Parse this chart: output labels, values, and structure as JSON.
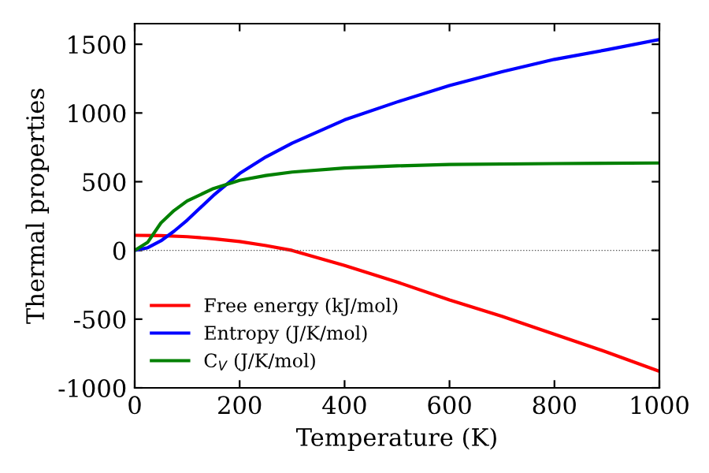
{
  "chart_data": {
    "type": "line",
    "xlabel": "Temperature (K)",
    "ylabel": "Thermal properties",
    "xlim": [
      0,
      1000
    ],
    "xticks": [
      0,
      200,
      400,
      600,
      800,
      1000
    ],
    "ylim": [
      -1000,
      1650
    ],
    "yticks": [
      -1000,
      -500,
      0,
      500,
      1000,
      1500
    ],
    "grid": false,
    "legend": "bottom left",
    "marker": "none",
    "line_style": "solid",
    "ref_lines": [
      {
        "axis": "y",
        "value": 0,
        "label": null,
        "color": "#555555",
        "line_style": "dotted"
      }
    ],
    "series": [
      {
        "name": "Free energy (kJ/mol)",
        "color": "#ff0000",
        "x": [
          0,
          50,
          100,
          150,
          200,
          250,
          300,
          400,
          500,
          600,
          700,
          800,
          900,
          1000
        ],
        "values": [
          110,
          108,
          100,
          85,
          65,
          35,
          0,
          -110,
          -230,
          -360,
          -480,
          -610,
          -740,
          -880
        ]
      },
      {
        "name": "Entropy (J/K/mol)",
        "color": "#0000ff",
        "x": [
          0,
          25,
          50,
          75,
          100,
          150,
          200,
          250,
          300,
          400,
          500,
          600,
          700,
          800,
          900,
          1000
        ],
        "values": [
          0,
          20,
          70,
          140,
          220,
          400,
          560,
          680,
          780,
          950,
          1080,
          1200,
          1300,
          1390,
          1460,
          1535
        ]
      },
      {
        "name": "C$_{V}$ (J/K/mol)",
        "color": "#008000",
        "x": [
          0,
          25,
          50,
          75,
          100,
          150,
          200,
          250,
          300,
          400,
          500,
          600,
          800,
          1000
        ],
        "values": [
          0,
          60,
          200,
          290,
          360,
          450,
          510,
          545,
          570,
          600,
          615,
          625,
          632,
          636
        ]
      }
    ]
  }
}
